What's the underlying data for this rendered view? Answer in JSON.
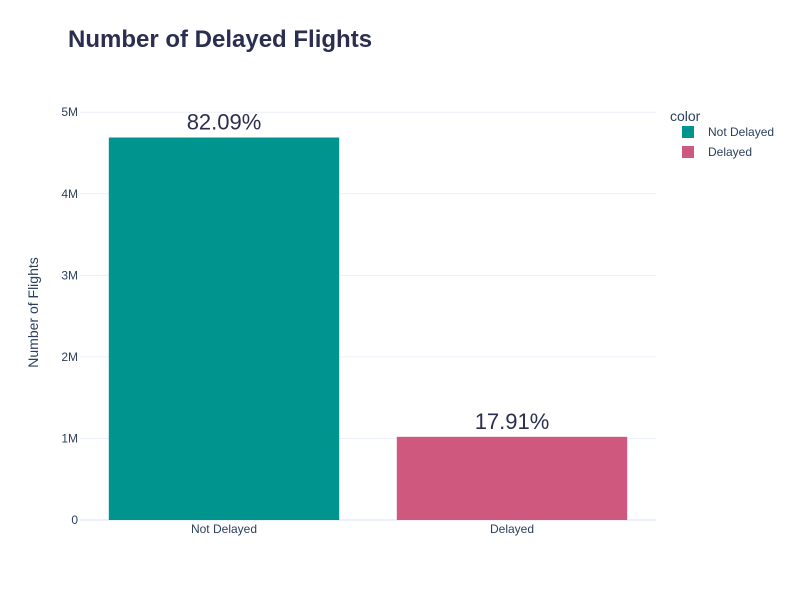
{
  "chart_data": {
    "type": "bar",
    "title": "Number of Delayed Flights",
    "xlabel": "",
    "ylabel": "Number of Flights",
    "categories": [
      "Not Delayed",
      "Delayed"
    ],
    "values": [
      4690000,
      1020000
    ],
    "data_labels": [
      "82.09%",
      "17.91%"
    ],
    "colors": [
      "#00948f",
      "#cf597e"
    ],
    "ylim": [
      0,
      5150000
    ],
    "yticks": [
      0,
      1000000,
      2000000,
      3000000,
      4000000,
      5000000
    ],
    "ytick_labels": [
      "0",
      "1M",
      "2M",
      "3M",
      "4M",
      "5M"
    ],
    "grid": true,
    "legend": {
      "title": "color",
      "placement": "top-right",
      "entries": [
        "Not Delayed",
        "Delayed"
      ]
    }
  }
}
